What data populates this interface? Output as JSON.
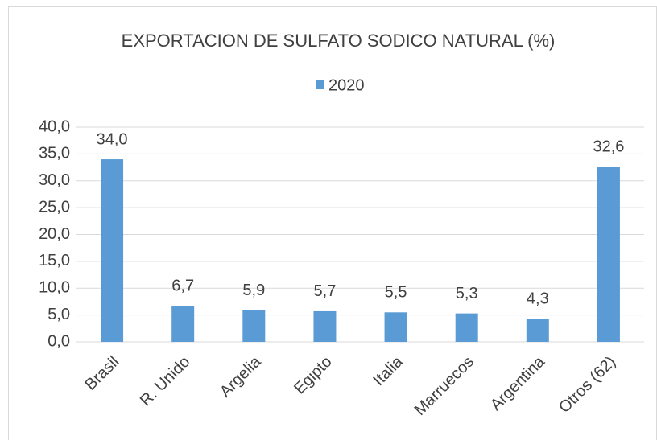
{
  "chart_data": {
    "type": "bar",
    "title": "EXPORTACION DE SULFATO SODICO NATURAL (%)",
    "categories": [
      "Brasil",
      "R. Unido",
      "Argelia",
      "Egipto",
      "Italia",
      "Marruecos",
      "Argentina",
      "Otros (62)"
    ],
    "series": [
      {
        "name": "2020",
        "color": "#5b9bd5",
        "values": [
          34.0,
          6.7,
          5.9,
          5.7,
          5.5,
          5.3,
          4.3,
          32.6
        ],
        "value_labels": [
          "34,0",
          "6,7",
          "5,9",
          "5,7",
          "5,5",
          "5,3",
          "4,3",
          "32,6"
        ]
      }
    ],
    "ylim": [
      0,
      40
    ],
    "yticks": [
      {
        "value": 0,
        "label": "0,0"
      },
      {
        "value": 5,
        "label": "5,0"
      },
      {
        "value": 10,
        "label": "10,0"
      },
      {
        "value": 15,
        "label": "15,0"
      },
      {
        "value": 20,
        "label": "20,0"
      },
      {
        "value": 25,
        "label": "25,0"
      },
      {
        "value": 30,
        "label": "30,0"
      },
      {
        "value": 35,
        "label": "35,0"
      },
      {
        "value": 40,
        "label": "40,0"
      }
    ],
    "grid": true,
    "legend": "top"
  }
}
